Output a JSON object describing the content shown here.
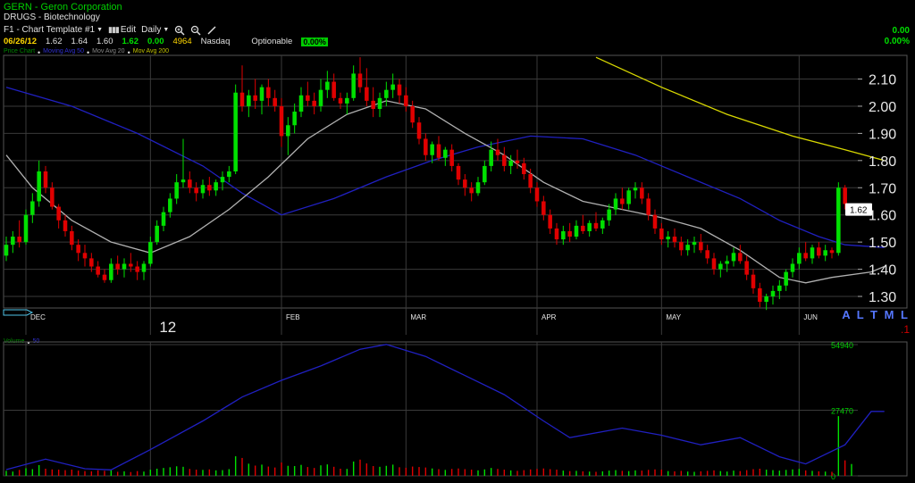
{
  "header": {
    "title": "GERN - Geron Corporation",
    "sector": "DRUGS - Biotechnology",
    "template_label": "F1 - Chart Template #1",
    "edit_label": "Edit",
    "period_label": "Daily"
  },
  "quote": {
    "date": "06/26/12",
    "open": "1.62",
    "high": "1.64",
    "low": "1.60",
    "close": "1.62",
    "change": "0.00",
    "volume": "4964",
    "exchange": "Nasdaq",
    "optionable_label": "Optionable",
    "pct_badge": "0.00%",
    "right_change": "0.00",
    "right_pct": "0.00%"
  },
  "legend": {
    "price": "Price Chart",
    "ma50": "Moving Avg 50",
    "ma20": "Mov Avg 20",
    "ma200": "Mov Avg 200",
    "volume": "Volume",
    "volume_ma": "50"
  },
  "nav": {
    "labels": "A L T M L",
    "red": ".1"
  },
  "colors": {
    "up": "#00e000",
    "down": "#e00000",
    "ma50": "#2020c0",
    "ma20": "#b0b0b0",
    "ma200": "#d8d800",
    "grid": "#3a3a3a",
    "last_price_bg": "#ffffff"
  },
  "chart_data": {
    "type": "candlestick",
    "price_axis": {
      "ticks": [
        "2.10",
        "2.00",
        "1.90",
        "1.80",
        "1.70",
        "1.60",
        "1.50",
        "1.40",
        "1.30"
      ],
      "range": [
        1.25,
        2.18
      ]
    },
    "last_price": "1.62",
    "x_labels": [
      {
        "label": "DEC",
        "index": 3
      },
      {
        "label": "12",
        "index": 22
      },
      {
        "label": "FEB",
        "index": 42
      },
      {
        "label": "MAR",
        "index": 61
      },
      {
        "label": "APR",
        "index": 81
      },
      {
        "label": "MAY",
        "index": 100
      },
      {
        "label": "JUN",
        "index": 121
      }
    ],
    "bars": [
      [
        1.45,
        1.52,
        1.43,
        1.49,
        2100
      ],
      [
        1.49,
        1.54,
        1.46,
        1.52,
        1800
      ],
      [
        1.52,
        1.58,
        1.48,
        1.5,
        2500
      ],
      [
        1.5,
        1.62,
        1.49,
        1.6,
        3200
      ],
      [
        1.6,
        1.68,
        1.57,
        1.65,
        2800
      ],
      [
        1.65,
        1.8,
        1.63,
        1.76,
        4500
      ],
      [
        1.76,
        1.78,
        1.68,
        1.7,
        3000
      ],
      [
        1.7,
        1.72,
        1.62,
        1.63,
        2700
      ],
      [
        1.63,
        1.64,
        1.55,
        1.58,
        2600
      ],
      [
        1.58,
        1.6,
        1.52,
        1.54,
        2400
      ],
      [
        1.54,
        1.56,
        1.47,
        1.49,
        2600
      ],
      [
        1.49,
        1.51,
        1.43,
        1.46,
        2200
      ],
      [
        1.46,
        1.49,
        1.41,
        1.44,
        2000
      ],
      [
        1.44,
        1.46,
        1.39,
        1.41,
        1900
      ],
      [
        1.41,
        1.43,
        1.37,
        1.38,
        2300
      ],
      [
        1.38,
        1.4,
        1.35,
        1.36,
        2100
      ],
      [
        1.36,
        1.44,
        1.35,
        1.42,
        2600
      ],
      [
        1.42,
        1.45,
        1.38,
        1.4,
        1700
      ],
      [
        1.4,
        1.44,
        1.37,
        1.42,
        1900
      ],
      [
        1.42,
        1.46,
        1.39,
        1.41,
        1600
      ],
      [
        1.41,
        1.43,
        1.36,
        1.39,
        2000
      ],
      [
        1.39,
        1.43,
        1.36,
        1.42,
        1800
      ],
      [
        1.42,
        1.52,
        1.41,
        1.5,
        2600
      ],
      [
        1.5,
        1.58,
        1.49,
        1.56,
        3000
      ],
      [
        1.56,
        1.63,
        1.54,
        1.61,
        3300
      ],
      [
        1.61,
        1.68,
        1.59,
        1.66,
        3600
      ],
      [
        1.66,
        1.75,
        1.64,
        1.72,
        4000
      ],
      [
        1.72,
        1.88,
        1.7,
        1.73,
        3800
      ],
      [
        1.73,
        1.76,
        1.68,
        1.7,
        2900
      ],
      [
        1.7,
        1.72,
        1.65,
        1.68,
        2600
      ],
      [
        1.68,
        1.73,
        1.66,
        1.71,
        2500
      ],
      [
        1.71,
        1.74,
        1.67,
        1.69,
        2700
      ],
      [
        1.69,
        1.73,
        1.67,
        1.72,
        2300
      ],
      [
        1.72,
        1.76,
        1.69,
        1.74,
        2400
      ],
      [
        1.74,
        1.78,
        1.72,
        1.76,
        2800
      ],
      [
        1.76,
        2.08,
        1.75,
        2.05,
        8200
      ],
      [
        2.05,
        2.15,
        1.98,
        2.0,
        7500
      ],
      [
        2.0,
        2.06,
        1.96,
        2.04,
        5100
      ],
      [
        2.04,
        2.1,
        1.99,
        2.02,
        4300
      ],
      [
        2.02,
        2.08,
        1.97,
        2.07,
        4700
      ],
      [
        2.07,
        2.1,
        2.0,
        2.03,
        3900
      ],
      [
        2.03,
        2.06,
        1.98,
        2.0,
        3500
      ],
      [
        2.0,
        2.03,
        1.85,
        1.89,
        5600
      ],
      [
        1.89,
        1.96,
        1.82,
        1.93,
        4200
      ],
      [
        1.93,
        2.01,
        1.9,
        1.98,
        4100
      ],
      [
        1.98,
        2.07,
        1.96,
        2.04,
        4600
      ],
      [
        2.04,
        2.09,
        2.0,
        2.02,
        3700
      ],
      [
        2.02,
        2.05,
        1.97,
        2.0,
        3300
      ],
      [
        2.0,
        2.1,
        1.98,
        2.06,
        4400
      ],
      [
        2.06,
        2.13,
        2.03,
        2.09,
        4800
      ],
      [
        2.09,
        2.12,
        2.02,
        2.03,
        3800
      ],
      [
        2.03,
        2.05,
        1.99,
        2.01,
        3000
      ],
      [
        2.01,
        2.05,
        1.97,
        2.03,
        2900
      ],
      [
        2.03,
        2.15,
        2.02,
        2.12,
        6000
      ],
      [
        2.12,
        2.18,
        2.05,
        2.07,
        6800
      ],
      [
        2.07,
        2.14,
        2.0,
        2.02,
        5200
      ],
      [
        2.02,
        2.07,
        1.96,
        1.99,
        4100
      ],
      [
        1.99,
        2.05,
        1.96,
        2.03,
        3800
      ],
      [
        2.03,
        2.09,
        2.0,
        2.06,
        4200
      ],
      [
        2.06,
        2.12,
        2.03,
        2.08,
        4700
      ],
      [
        2.08,
        2.1,
        2.01,
        2.04,
        3600
      ],
      [
        2.04,
        2.07,
        1.98,
        2.0,
        3400
      ],
      [
        2.0,
        2.02,
        1.92,
        1.94,
        3900
      ],
      [
        1.94,
        1.96,
        1.86,
        1.88,
        3700
      ],
      [
        1.88,
        1.9,
        1.8,
        1.82,
        3500
      ],
      [
        1.82,
        1.87,
        1.79,
        1.86,
        3100
      ],
      [
        1.86,
        1.89,
        1.8,
        1.81,
        2800
      ],
      [
        1.81,
        1.85,
        1.78,
        1.84,
        2500
      ],
      [
        1.84,
        1.86,
        1.76,
        1.78,
        2900
      ],
      [
        1.78,
        1.79,
        1.71,
        1.73,
        3100
      ],
      [
        1.73,
        1.75,
        1.67,
        1.7,
        2800
      ],
      [
        1.7,
        1.72,
        1.65,
        1.68,
        2600
      ],
      [
        1.68,
        1.74,
        1.67,
        1.72,
        2300
      ],
      [
        1.72,
        1.8,
        1.71,
        1.78,
        2700
      ],
      [
        1.78,
        1.87,
        1.76,
        1.84,
        3300
      ],
      [
        1.84,
        1.88,
        1.8,
        1.82,
        2900
      ],
      [
        1.82,
        1.85,
        1.76,
        1.78,
        2600
      ],
      [
        1.78,
        1.82,
        1.75,
        1.8,
        2300
      ],
      [
        1.8,
        1.84,
        1.77,
        1.79,
        2100
      ],
      [
        1.79,
        1.81,
        1.73,
        1.75,
        2400
      ],
      [
        1.75,
        1.77,
        1.68,
        1.7,
        2700
      ],
      [
        1.7,
        1.72,
        1.63,
        1.65,
        2900
      ],
      [
        1.65,
        1.67,
        1.58,
        1.6,
        3100
      ],
      [
        1.6,
        1.62,
        1.53,
        1.55,
        2800
      ],
      [
        1.55,
        1.57,
        1.49,
        1.51,
        2600
      ],
      [
        1.51,
        1.56,
        1.49,
        1.54,
        2200
      ],
      [
        1.54,
        1.57,
        1.5,
        1.52,
        2000
      ],
      [
        1.52,
        1.58,
        1.51,
        1.56,
        2100
      ],
      [
        1.56,
        1.6,
        1.53,
        1.54,
        1900
      ],
      [
        1.54,
        1.58,
        1.52,
        1.57,
        1800
      ],
      [
        1.57,
        1.61,
        1.54,
        1.55,
        1700
      ],
      [
        1.55,
        1.59,
        1.53,
        1.58,
        1900
      ],
      [
        1.58,
        1.64,
        1.56,
        1.62,
        2200
      ],
      [
        1.62,
        1.68,
        1.6,
        1.66,
        2400
      ],
      [
        1.66,
        1.7,
        1.62,
        1.64,
        2100
      ],
      [
        1.64,
        1.7,
        1.62,
        1.69,
        2000
      ],
      [
        1.69,
        1.72,
        1.66,
        1.7,
        2300
      ],
      [
        1.7,
        1.72,
        1.64,
        1.66,
        2200
      ],
      [
        1.66,
        1.68,
        1.58,
        1.6,
        2500
      ],
      [
        1.6,
        1.62,
        1.53,
        1.55,
        2700
      ],
      [
        1.55,
        1.57,
        1.49,
        1.51,
        2600
      ],
      [
        1.51,
        1.54,
        1.48,
        1.52,
        2000
      ],
      [
        1.52,
        1.55,
        1.48,
        1.5,
        1900
      ],
      [
        1.5,
        1.52,
        1.45,
        1.47,
        2100
      ],
      [
        1.47,
        1.51,
        1.45,
        1.49,
        1800
      ],
      [
        1.49,
        1.52,
        1.46,
        1.5,
        1700
      ],
      [
        1.5,
        1.53,
        1.46,
        1.47,
        1900
      ],
      [
        1.47,
        1.49,
        1.42,
        1.44,
        2100
      ],
      [
        1.44,
        1.46,
        1.38,
        1.4,
        2300
      ],
      [
        1.4,
        1.43,
        1.37,
        1.42,
        2000
      ],
      [
        1.42,
        1.45,
        1.39,
        1.43,
        1800
      ],
      [
        1.43,
        1.48,
        1.41,
        1.46,
        2200
      ],
      [
        1.46,
        1.49,
        1.42,
        1.43,
        2000
      ],
      [
        1.43,
        1.45,
        1.36,
        1.38,
        2400
      ],
      [
        1.38,
        1.4,
        1.31,
        1.33,
        2800
      ],
      [
        1.33,
        1.35,
        1.26,
        1.28,
        3000
      ],
      [
        1.28,
        1.31,
        1.25,
        1.3,
        2600
      ],
      [
        1.3,
        1.34,
        1.27,
        1.32,
        2400
      ],
      [
        1.32,
        1.36,
        1.29,
        1.34,
        2200
      ],
      [
        1.34,
        1.4,
        1.32,
        1.39,
        2500
      ],
      [
        1.39,
        1.44,
        1.37,
        1.42,
        2700
      ],
      [
        1.42,
        1.48,
        1.4,
        1.46,
        2900
      ],
      [
        1.46,
        1.5,
        1.43,
        1.44,
        2300
      ],
      [
        1.44,
        1.49,
        1.42,
        1.48,
        2100
      ],
      [
        1.48,
        1.5,
        1.44,
        1.45,
        1900
      ],
      [
        1.45,
        1.49,
        1.43,
        1.47,
        1800
      ],
      [
        1.47,
        1.48,
        1.44,
        1.46,
        1700
      ],
      [
        1.46,
        1.72,
        1.45,
        1.7,
        25000
      ],
      [
        1.7,
        1.71,
        1.62,
        1.64,
        6500
      ],
      [
        1.62,
        1.64,
        1.6,
        1.62,
        4964
      ]
    ],
    "ma50": [
      [
        0,
        2.07
      ],
      [
        10,
        2.0
      ],
      [
        20,
        1.9
      ],
      [
        30,
        1.78
      ],
      [
        36,
        1.68
      ],
      [
        42,
        1.6
      ],
      [
        50,
        1.66
      ],
      [
        58,
        1.74
      ],
      [
        65,
        1.8
      ],
      [
        72,
        1.85
      ],
      [
        80,
        1.89
      ],
      [
        88,
        1.88
      ],
      [
        96,
        1.82
      ],
      [
        104,
        1.74
      ],
      [
        112,
        1.66
      ],
      [
        118,
        1.58
      ],
      [
        124,
        1.52
      ],
      [
        128,
        1.49
      ],
      [
        134,
        1.48
      ]
    ],
    "ma20": [
      [
        0,
        1.82
      ],
      [
        4,
        1.7
      ],
      [
        10,
        1.58
      ],
      [
        16,
        1.5
      ],
      [
        22,
        1.46
      ],
      [
        28,
        1.52
      ],
      [
        34,
        1.62
      ],
      [
        40,
        1.74
      ],
      [
        46,
        1.88
      ],
      [
        52,
        1.97
      ],
      [
        58,
        2.02
      ],
      [
        64,
        1.99
      ],
      [
        70,
        1.9
      ],
      [
        76,
        1.82
      ],
      [
        82,
        1.72
      ],
      [
        88,
        1.65
      ],
      [
        94,
        1.62
      ],
      [
        100,
        1.59
      ],
      [
        106,
        1.55
      ],
      [
        112,
        1.47
      ],
      [
        118,
        1.37
      ],
      [
        122,
        1.35
      ],
      [
        126,
        1.37
      ],
      [
        132,
        1.39
      ],
      [
        134,
        1.41
      ]
    ],
    "ma200": [
      [
        90,
        2.18
      ],
      [
        100,
        2.07
      ],
      [
        110,
        1.97
      ],
      [
        120,
        1.89
      ],
      [
        128,
        1.84
      ],
      [
        134,
        1.8
      ]
    ],
    "volume_axis": {
      "ticks": [
        "54940",
        "27470",
        "0"
      ],
      "max": 54940
    },
    "volume_ma": [
      [
        0,
        2600
      ],
      [
        6,
        7000
      ],
      [
        12,
        3000
      ],
      [
        16,
        2500
      ],
      [
        22,
        11000
      ],
      [
        30,
        23000
      ],
      [
        36,
        33000
      ],
      [
        42,
        40000
      ],
      [
        48,
        46000
      ],
      [
        54,
        53000
      ],
      [
        58,
        55000
      ],
      [
        64,
        50000
      ],
      [
        70,
        42000
      ],
      [
        76,
        34000
      ],
      [
        82,
        23000
      ],
      [
        86,
        16000
      ],
      [
        94,
        20000
      ],
      [
        100,
        17000
      ],
      [
        106,
        13000
      ],
      [
        112,
        16000
      ],
      [
        118,
        8000
      ],
      [
        122,
        5000
      ],
      [
        128,
        13000
      ],
      [
        132,
        27000
      ],
      [
        134,
        27000
      ]
    ]
  }
}
